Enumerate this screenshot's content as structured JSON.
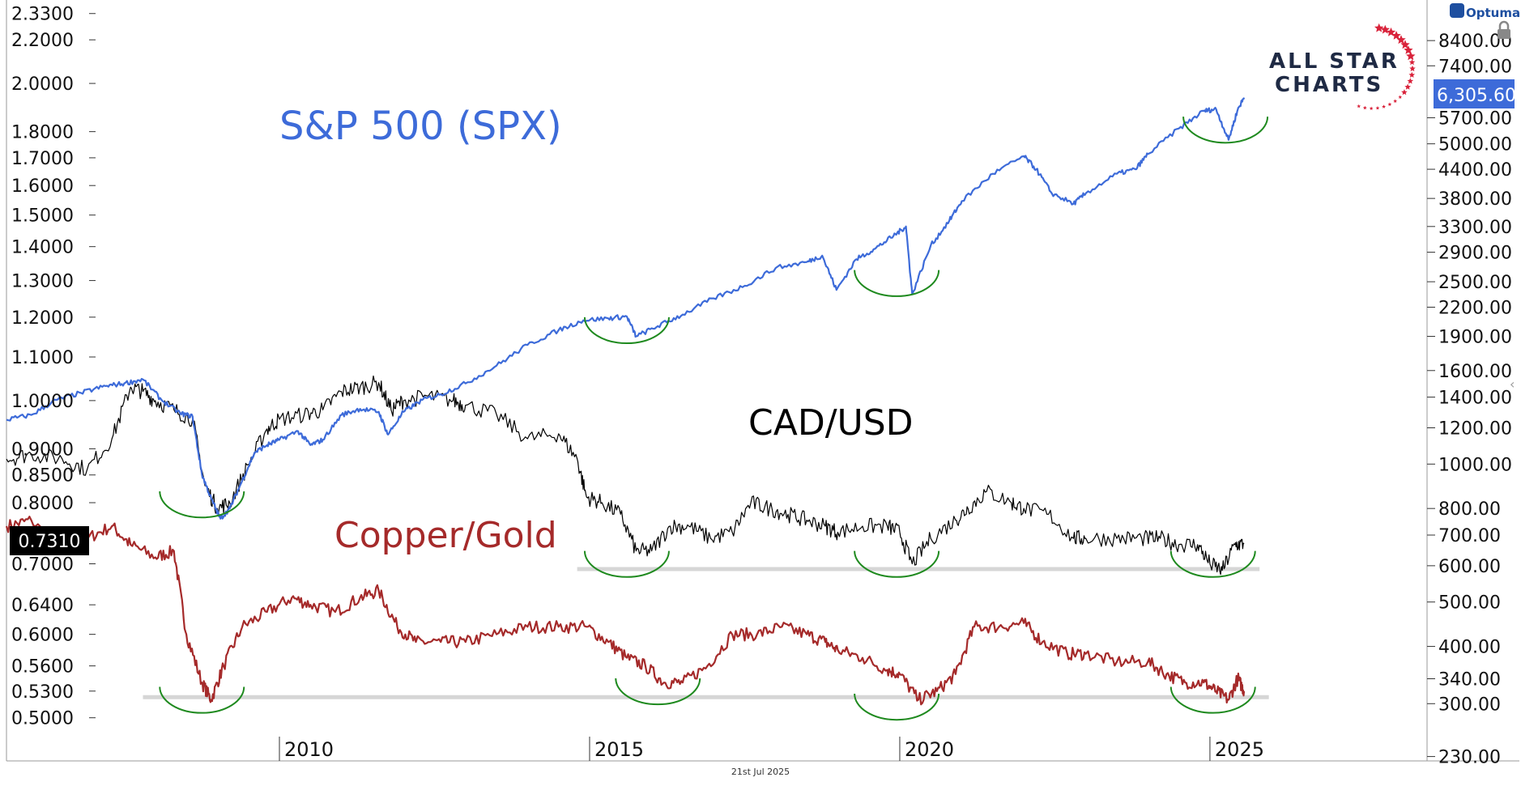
{
  "chart_data": {
    "type": "line",
    "footer_date": "21st Jul 2025",
    "brand": "Optuma",
    "logo": {
      "line1": "ALL STAR",
      "line2": "CHARTS"
    },
    "x_ticks": [
      2010,
      2015,
      2020,
      2025
    ],
    "xlim": [
      2005.6,
      2028.5
    ],
    "left_axis": {
      "scale": "log",
      "ylim": [
        0.455,
        2.4
      ],
      "ticks": [
        "2.3300",
        "2.2000",
        "2.0000",
        "1.8000",
        "1.7000",
        "1.6000",
        "1.5000",
        "1.4000",
        "1.3000",
        "1.2000",
        "1.1000",
        "1.0000",
        "0.9000",
        "0.8500",
        "0.8000",
        "0.7000",
        "0.6400",
        "0.6000",
        "0.5600",
        "0.5300",
        "0.5000"
      ],
      "current_value": "0.7310"
    },
    "right_axis": {
      "scale": "log",
      "ylim": [
        225,
        10300
      ],
      "ticks": [
        "8400.00",
        "7400.00",
        "5700.00",
        "5000.00",
        "4400.00",
        "3800.00",
        "3300.00",
        "2900.00",
        "2500.00",
        "2200.00",
        "1900.00",
        "1600.00",
        "1400.00",
        "1200.00",
        "1000.00",
        "800.00",
        "700.00",
        "600.00",
        "500.00",
        "400.00",
        "340.00",
        "300.00",
        "230.00"
      ],
      "current_value": "6,305.60"
    },
    "series": [
      {
        "name": "S&P 500 (SPX)",
        "color": "#3d6bd9",
        "axis": "right",
        "x": [
          2005.6,
          2006.0,
          2006.4,
          2006.8,
          2007.2,
          2007.5,
          2007.8,
          2008.1,
          2008.4,
          2008.6,
          2008.75,
          2008.9,
          2009.05,
          2009.2,
          2009.4,
          2009.6,
          2009.8,
          2010.0,
          2010.3,
          2010.5,
          2010.7,
          2011.0,
          2011.3,
          2011.6,
          2011.75,
          2012.0,
          2012.3,
          2012.6,
          2013.0,
          2013.5,
          2014.0,
          2014.5,
          2014.9,
          2015.3,
          2015.6,
          2015.75,
          2016.1,
          2016.5,
          2017.0,
          2017.5,
          2018.0,
          2018.5,
          2018.75,
          2018.98,
          2019.3,
          2019.6,
          2019.9,
          2020.1,
          2020.2,
          2020.5,
          2020.8,
          2021.0,
          2021.5,
          2022.0,
          2022.2,
          2022.45,
          2022.8,
          2023.0,
          2023.5,
          2023.8,
          2024.0,
          2024.5,
          2024.9,
          2025.1,
          2025.3,
          2025.45,
          2025.55
        ],
        "values": [
          1250,
          1280,
          1380,
          1430,
          1480,
          1500,
          1530,
          1380,
          1290,
          1270,
          950,
          840,
          760,
          800,
          920,
          1060,
          1100,
          1130,
          1180,
          1100,
          1130,
          1280,
          1320,
          1300,
          1160,
          1300,
          1380,
          1420,
          1500,
          1640,
          1820,
          1960,
          2060,
          2080,
          2100,
          1900,
          2000,
          2120,
          2300,
          2450,
          2680,
          2760,
          2850,
          2400,
          2800,
          2950,
          3150,
          3300,
          2350,
          3000,
          3400,
          3750,
          4300,
          4700,
          4400,
          3900,
          3700,
          3900,
          4300,
          4400,
          4750,
          5400,
          5900,
          5950,
          5100,
          5950,
          6305.6
        ]
      },
      {
        "name": "CAD/USD",
        "color": "#000000",
        "axis": "left",
        "x": [
          2005.6,
          2006.0,
          2006.5,
          2006.9,
          2007.3,
          2007.6,
          2007.8,
          2008.0,
          2008.3,
          2008.6,
          2008.8,
          2009.0,
          2009.2,
          2009.5,
          2009.8,
          2010.0,
          2010.4,
          2010.7,
          2011.0,
          2011.3,
          2011.6,
          2011.8,
          2012.0,
          2012.4,
          2012.8,
          2013.0,
          2013.5,
          2014.0,
          2014.5,
          2014.8,
          2014.95,
          2015.2,
          2015.5,
          2015.75,
          2016.0,
          2016.3,
          2016.6,
          2016.95,
          2017.3,
          2017.6,
          2017.9,
          2018.2,
          2018.5,
          2018.8,
          2019.0,
          2019.4,
          2019.8,
          2020.0,
          2020.2,
          2020.5,
          2020.9,
          2021.1,
          2021.4,
          2021.8,
          2022.0,
          2022.4,
          2022.8,
          2023.0,
          2023.5,
          2023.9,
          2024.2,
          2024.5,
          2024.8,
          2025.0,
          2025.2,
          2025.4,
          2025.55
        ],
        "values": [
          0.88,
          0.89,
          0.88,
          0.86,
          0.92,
          1.03,
          1.02,
          1.0,
          0.98,
          0.96,
          0.83,
          0.79,
          0.8,
          0.87,
          0.94,
          0.96,
          0.97,
          0.98,
          1.02,
          1.03,
          1.04,
          0.98,
          1.0,
          1.01,
          1.0,
          0.99,
          0.97,
          0.92,
          0.93,
          0.88,
          0.81,
          0.8,
          0.78,
          0.72,
          0.72,
          0.76,
          0.76,
          0.74,
          0.75,
          0.8,
          0.79,
          0.78,
          0.77,
          0.76,
          0.75,
          0.76,
          0.76,
          0.75,
          0.7,
          0.74,
          0.77,
          0.79,
          0.82,
          0.8,
          0.79,
          0.78,
          0.74,
          0.74,
          0.74,
          0.74,
          0.74,
          0.73,
          0.73,
          0.7,
          0.69,
          0.73,
          0.731
        ]
      },
      {
        "name": "Copper/Gold",
        "color": "#a52a2a",
        "axis": "left",
        "x": [
          2005.6,
          2006.0,
          2006.5,
          2006.9,
          2007.3,
          2007.6,
          2008.0,
          2008.3,
          2008.5,
          2008.75,
          2008.9,
          2009.1,
          2009.4,
          2009.8,
          2010.2,
          2010.5,
          2010.9,
          2011.3,
          2011.6,
          2011.9,
          2012.2,
          2012.6,
          2013.0,
          2013.5,
          2014.0,
          2014.5,
          2014.95,
          2015.3,
          2015.6,
          2015.9,
          2016.2,
          2016.5,
          2016.9,
          2017.3,
          2017.7,
          2018.1,
          2018.5,
          2018.8,
          2019.0,
          2019.4,
          2019.8,
          2020.0,
          2020.3,
          2020.6,
          2020.9,
          2021.2,
          2021.6,
          2022.0,
          2022.3,
          2022.7,
          2023.0,
          2023.5,
          2024.0,
          2024.3,
          2024.6,
          2024.9,
          2025.1,
          2025.3,
          2025.45,
          2025.55
        ],
        "values": [
          0.76,
          0.77,
          0.72,
          0.74,
          0.76,
          0.73,
          0.71,
          0.72,
          0.6,
          0.54,
          0.52,
          0.56,
          0.61,
          0.63,
          0.65,
          0.64,
          0.63,
          0.65,
          0.66,
          0.61,
          0.59,
          0.59,
          0.59,
          0.6,
          0.61,
          0.61,
          0.61,
          0.59,
          0.57,
          0.56,
          0.54,
          0.54,
          0.56,
          0.6,
          0.6,
          0.61,
          0.6,
          0.59,
          0.58,
          0.57,
          0.555,
          0.55,
          0.52,
          0.53,
          0.55,
          0.61,
          0.61,
          0.615,
          0.59,
          0.575,
          0.575,
          0.565,
          0.565,
          0.55,
          0.54,
          0.54,
          0.53,
          0.52,
          0.545,
          0.53
        ]
      }
    ],
    "annotations": [
      {
        "text": "S&P 500 (SPX)",
        "color": "#3d6bd9"
      },
      {
        "text": "CAD/USD",
        "color": "#000000"
      },
      {
        "text": "Copper/Gold",
        "color": "#a52a2a"
      }
    ],
    "support_lines": [
      {
        "series": "CAD/USD",
        "value": 0.692,
        "x": [
          2014.8,
          2025.8
        ]
      },
      {
        "series": "Copper/Gold",
        "value": 0.523,
        "x": [
          2007.8,
          2025.95
        ]
      }
    ],
    "arc_markers": [
      {
        "x": 2008.75,
        "value": 0.82,
        "axis": "left"
      },
      {
        "x": 2008.75,
        "value": 0.535,
        "axis": "left"
      },
      {
        "x": 2015.6,
        "value": 1.2,
        "axis": "left"
      },
      {
        "x": 2015.6,
        "value": 0.72,
        "axis": "left"
      },
      {
        "x": 2016.1,
        "value": 0.545,
        "axis": "left"
      },
      {
        "x": 2019.95,
        "value": 1.33,
        "axis": "left"
      },
      {
        "x": 2019.95,
        "value": 0.72,
        "axis": "left"
      },
      {
        "x": 2019.95,
        "value": 0.527,
        "axis": "left"
      },
      {
        "x": 2025.25,
        "value": 1.86,
        "axis": "left"
      },
      {
        "x": 2025.05,
        "value": 0.72,
        "axis": "left"
      },
      {
        "x": 2025.05,
        "value": 0.535,
        "axis": "left"
      }
    ]
  }
}
